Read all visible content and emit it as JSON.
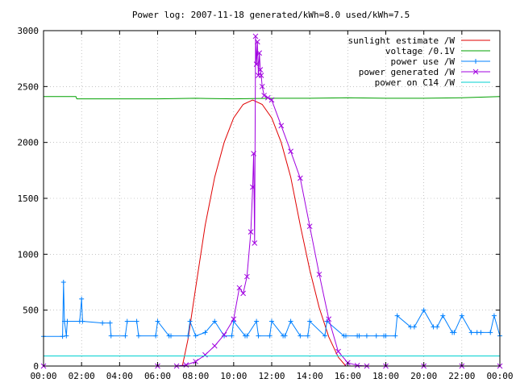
{
  "chart_data": {
    "type": "line",
    "title": "Power log: 2007-11-18 generated/kWh=8.0 used/kWh=7.5",
    "xlabel": "",
    "ylabel": "",
    "x_ticks": [
      "00:00",
      "02:00",
      "04:00",
      "06:00",
      "08:00",
      "10:00",
      "12:00",
      "14:00",
      "16:00",
      "18:00",
      "20:00",
      "22:00",
      "00:00"
    ],
    "xlim_hours": [
      0,
      24
    ],
    "ylim": [
      0,
      3000
    ],
    "y_ticks": [
      0,
      500,
      1000,
      1500,
      2000,
      2500,
      3000
    ],
    "grid": true,
    "legend_position": "top-right",
    "series": [
      {
        "name": "sunlight estimate /W",
        "color": "#e00000",
        "marker": "none",
        "x": [
          7.3,
          7.6,
          8.0,
          8.5,
          9.0,
          9.5,
          10.0,
          10.5,
          11.0,
          11.5,
          12.0,
          12.5,
          13.0,
          13.5,
          14.0,
          14.5,
          15.0,
          15.5,
          15.9
        ],
        "y": [
          0,
          240,
          700,
          1260,
          1690,
          2000,
          2220,
          2340,
          2380,
          2340,
          2220,
          2000,
          1690,
          1260,
          860,
          520,
          260,
          80,
          0
        ]
      },
      {
        "name": "voltage /0.1V",
        "color": "#00a000",
        "marker": "none",
        "x": [
          0,
          1.7,
          1.75,
          4.0,
          6.0,
          8.0,
          10.0,
          12.0,
          14.0,
          16.0,
          18.0,
          20.0,
          22.0,
          24.0
        ],
        "y": [
          2410,
          2410,
          2390,
          2390,
          2390,
          2395,
          2390,
          2395,
          2395,
          2400,
          2395,
          2395,
          2400,
          2410
        ]
      },
      {
        "name": "power use /W",
        "color": "#0080ff",
        "marker": "plus",
        "x": [
          0,
          1.0,
          1.05,
          1.1,
          1.2,
          1.25,
          1.9,
          2.0,
          2.05,
          3.1,
          3.5,
          3.55,
          4.3,
          4.4,
          4.9,
          5.0,
          5.9,
          6.0,
          6.6,
          6.7,
          7.6,
          7.7,
          8.0,
          8.5,
          9.0,
          9.5,
          9.9,
          10.0,
          10.6,
          10.7,
          11.2,
          11.3,
          11.9,
          12.0,
          12.6,
          12.7,
          13.0,
          13.5,
          13.9,
          14.0,
          14.8,
          14.9,
          15.8,
          15.9,
          16.5,
          16.6,
          17.0,
          17.5,
          17.9,
          18.0,
          18.5,
          18.6,
          19.3,
          19.5,
          20.0,
          20.5,
          20.7,
          21.0,
          21.5,
          21.6,
          22.0,
          22.5,
          22.8,
          23.0,
          23.5,
          23.7,
          24.0
        ],
        "y": [
          265,
          265,
          750,
          400,
          270,
          400,
          400,
          600,
          400,
          385,
          385,
          270,
          270,
          400,
          400,
          270,
          270,
          400,
          270,
          270,
          270,
          400,
          270,
          300,
          400,
          270,
          270,
          400,
          270,
          270,
          400,
          270,
          270,
          400,
          270,
          270,
          400,
          270,
          270,
          400,
          270,
          400,
          270,
          270,
          270,
          270,
          270,
          270,
          270,
          270,
          270,
          450,
          350,
          350,
          500,
          350,
          350,
          450,
          300,
          300,
          450,
          300,
          300,
          300,
          300,
          450,
          270
        ]
      },
      {
        "name": "power generated /W",
        "color": "#a000e0",
        "marker": "x",
        "x": [
          0,
          6.0,
          7.0,
          7.5,
          8.0,
          8.5,
          9.0,
          9.5,
          10.0,
          10.3,
          10.5,
          10.7,
          10.9,
          11.0,
          11.05,
          11.1,
          11.15,
          11.2,
          11.25,
          11.3,
          11.35,
          11.4,
          11.45,
          11.5,
          11.6,
          11.8,
          12.0,
          12.5,
          13.0,
          13.5,
          14.0,
          14.5,
          15.0,
          15.5,
          16.0,
          16.5,
          17.0,
          18.0,
          20.0,
          22.0,
          24.0
        ],
        "y": [
          0,
          0,
          0,
          10,
          40,
          100,
          180,
          280,
          420,
          700,
          650,
          800,
          1200,
          1600,
          1900,
          1100,
          2950,
          2700,
          2900,
          2600,
          2800,
          2650,
          2600,
          2500,
          2420,
          2400,
          2380,
          2150,
          1920,
          1680,
          1250,
          820,
          420,
          130,
          30,
          5,
          0,
          0,
          0,
          0,
          0
        ]
      },
      {
        "name": "power on C14 /W",
        "color": "#00d0d0",
        "marker": "none",
        "x": [
          0,
          24
        ],
        "y": [
          90,
          90
        ]
      }
    ]
  }
}
